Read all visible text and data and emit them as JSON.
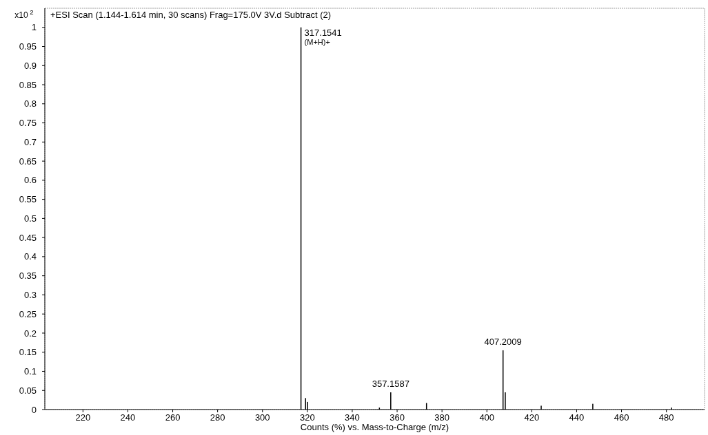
{
  "chart_data": {
    "type": "bar",
    "title": "+ESI Scan (1.144-1.614 min, 30 scans) Frag=175.0V 3V.d  Subtract (2)",
    "xlabel": "Counts (%) vs. Mass-to-Charge (m/z)",
    "ylabel": "x10$^{2}$",
    "x": [
      317.1541,
      319.2,
      320.1,
      352.1,
      357.1587,
      373.1,
      407.2009,
      408.2,
      424.2,
      447.2,
      482.3
    ],
    "values": [
      1,
      0.03,
      0.02,
      0.005,
      0.045,
      0.017,
      0.155,
      0.045,
      0.01,
      0.015,
      0.005
    ],
    "color": "#000000",
    "xlim": [
      203,
      497
    ],
    "xticks": [
      220,
      240,
      260,
      280,
      300,
      320,
      340,
      360,
      380,
      400,
      420,
      440,
      460,
      480
    ],
    "ylim": [
      0,
      1.05
    ],
    "yticks": [
      0,
      0.05,
      0.1,
      0.15,
      0.2,
      0.25,
      0.3,
      0.35,
      0.4,
      0.45,
      0.5,
      0.55,
      0.6,
      0.65,
      0.7,
      0.75,
      0.8,
      0.85,
      0.9,
      0.95,
      1
    ],
    "annotations": [
      {
        "text": "317.1541",
        "x": 317.1541,
        "y": 1
      },
      {
        "text": "(M+H)+",
        "x": 317.1541,
        "y": 1
      },
      {
        "text": "357.1587",
        "x": 357.1587,
        "y": 0.045
      },
      {
        "text": "407.2009",
        "x": 407.2009,
        "y": 0.155
      }
    ]
  }
}
